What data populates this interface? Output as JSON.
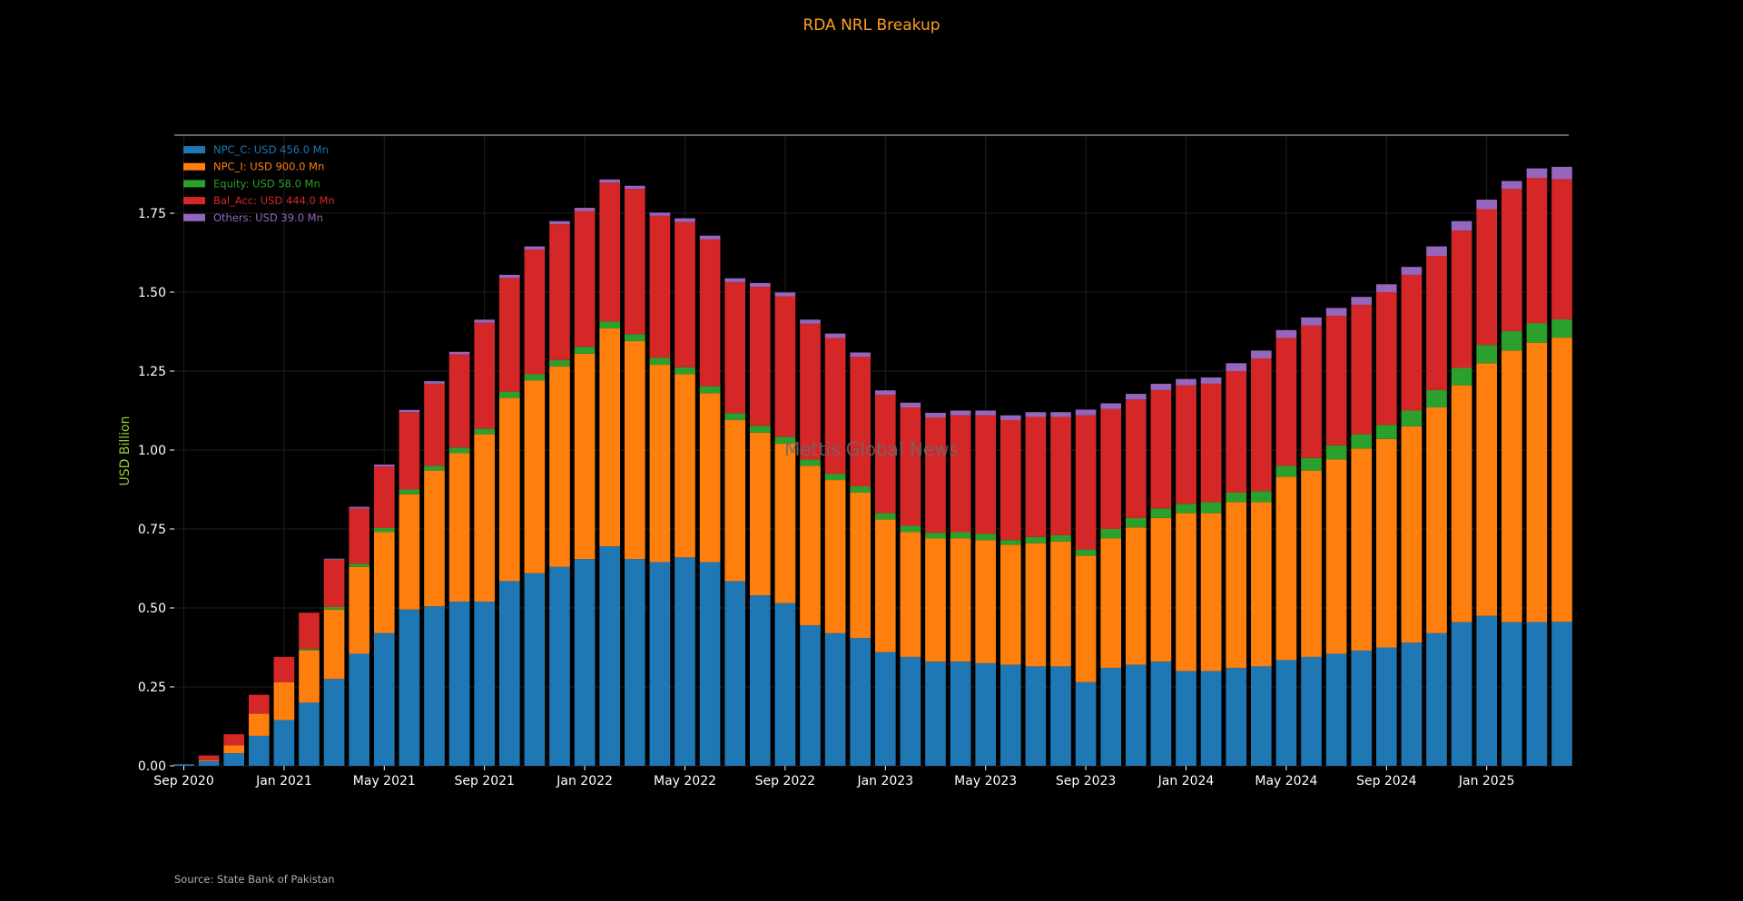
{
  "chart_data": {
    "type": "bar",
    "stacked": true,
    "title": "RDA NRL Breakup",
    "xlabel": "",
    "ylabel": "USD Billion",
    "ylim": [
      0,
      1.9
    ],
    "yticks": [
      "0.00",
      "0.25",
      "0.50",
      "0.75",
      "1.00",
      "1.25",
      "1.50",
      "1.75"
    ],
    "xtick_labels": [
      "Sep 2020",
      "Jan 2021",
      "May 2021",
      "Sep 2021",
      "Jan 2022",
      "May 2022",
      "Sep 2022",
      "Jan 2023",
      "May 2023",
      "Sep 2023",
      "Jan 2024",
      "May 2024",
      "Sep 2024",
      "Jan 2025"
    ],
    "xtick_every": 4,
    "grid": true,
    "legend_position": "top-left",
    "watermark": "Mettis Global News",
    "source": "Source: State Bank of Pakistan",
    "colors": {
      "title": "#ff9f1c",
      "ylabel": "#9acd32",
      "background": "#000000",
      "axis_line": "#888888",
      "grid": "#1e1e1e",
      "watermark": "#6a6a6a"
    },
    "series": [
      {
        "name": "NPC_C: USD 456.0 Mn",
        "color": "#1f77b4",
        "values": [
          0.005,
          0.015,
          0.04,
          0.095,
          0.145,
          0.2,
          0.275,
          0.355,
          0.42,
          0.495,
          0.505,
          0.52,
          0.52,
          0.585,
          0.61,
          0.63,
          0.655,
          0.695,
          0.655,
          0.645,
          0.66,
          0.645,
          0.585,
          0.54,
          0.515,
          0.445,
          0.42,
          0.405,
          0.36,
          0.345,
          0.33,
          0.33,
          0.325,
          0.32,
          0.315,
          0.315,
          0.265,
          0.31,
          0.32,
          0.33,
          0.3,
          0.3,
          0.31,
          0.315,
          0.335,
          0.345,
          0.355,
          0.365,
          0.375,
          0.39,
          0.42,
          0.455,
          0.475,
          0.455,
          0.455,
          0.456
        ]
      },
      {
        "name": "NPC_I: USD 900.0 Mn",
        "color": "#ff7f0e",
        "values": [
          0,
          0.003,
          0.025,
          0.07,
          0.12,
          0.165,
          0.22,
          0.275,
          0.32,
          0.365,
          0.43,
          0.47,
          0.53,
          0.58,
          0.61,
          0.635,
          0.65,
          0.69,
          0.69,
          0.625,
          0.58,
          0.535,
          0.51,
          0.515,
          0.505,
          0.505,
          0.485,
          0.46,
          0.42,
          0.395,
          0.39,
          0.39,
          0.39,
          0.38,
          0.39,
          0.395,
          0.4,
          0.41,
          0.435,
          0.455,
          0.5,
          0.5,
          0.525,
          0.52,
          0.58,
          0.59,
          0.615,
          0.64,
          0.66,
          0.685,
          0.715,
          0.75,
          0.8,
          0.86,
          0.885,
          0.9
        ]
      },
      {
        "name": "Equity: USD 58.0 Mn",
        "color": "#2ca02c",
        "values": [
          0,
          0,
          0,
          0,
          0,
          0.005,
          0.008,
          0.01,
          0.013,
          0.015,
          0.015,
          0.018,
          0.018,
          0.02,
          0.02,
          0.02,
          0.022,
          0.022,
          0.022,
          0.022,
          0.022,
          0.022,
          0.022,
          0.022,
          0.022,
          0.02,
          0.02,
          0.02,
          0.02,
          0.02,
          0.018,
          0.02,
          0.02,
          0.015,
          0.02,
          0.02,
          0.02,
          0.03,
          0.03,
          0.03,
          0.03,
          0.035,
          0.03,
          0.035,
          0.035,
          0.04,
          0.045,
          0.045,
          0.045,
          0.05,
          0.055,
          0.055,
          0.058,
          0.062,
          0.062,
          0.058
        ]
      },
      {
        "name": "Bal_Acc: USD 444.0 Mn",
        "color": "#d62728",
        "values": [
          0,
          0.015,
          0.035,
          0.06,
          0.08,
          0.115,
          0.15,
          0.175,
          0.195,
          0.245,
          0.26,
          0.295,
          0.335,
          0.36,
          0.395,
          0.43,
          0.43,
          0.44,
          0.46,
          0.45,
          0.46,
          0.465,
          0.415,
          0.44,
          0.445,
          0.43,
          0.43,
          0.41,
          0.375,
          0.375,
          0.365,
          0.37,
          0.375,
          0.38,
          0.38,
          0.375,
          0.425,
          0.38,
          0.375,
          0.375,
          0.375,
          0.375,
          0.385,
          0.42,
          0.405,
          0.42,
          0.41,
          0.41,
          0.42,
          0.43,
          0.425,
          0.435,
          0.43,
          0.45,
          0.46,
          0.444
        ]
      },
      {
        "name": "Others: USD 39.0 Mn",
        "color": "#9467bd",
        "values": [
          0,
          0,
          0,
          0,
          0,
          0,
          0.003,
          0.005,
          0.006,
          0.007,
          0.008,
          0.008,
          0.01,
          0.01,
          0.01,
          0.01,
          0.01,
          0.01,
          0.01,
          0.01,
          0.012,
          0.012,
          0.012,
          0.012,
          0.012,
          0.013,
          0.014,
          0.014,
          0.014,
          0.015,
          0.015,
          0.015,
          0.015,
          0.015,
          0.015,
          0.015,
          0.018,
          0.018,
          0.018,
          0.02,
          0.02,
          0.02,
          0.025,
          0.025,
          0.025,
          0.025,
          0.025,
          0.025,
          0.025,
          0.025,
          0.03,
          0.03,
          0.03,
          0.025,
          0.03,
          0.039
        ]
      }
    ]
  }
}
